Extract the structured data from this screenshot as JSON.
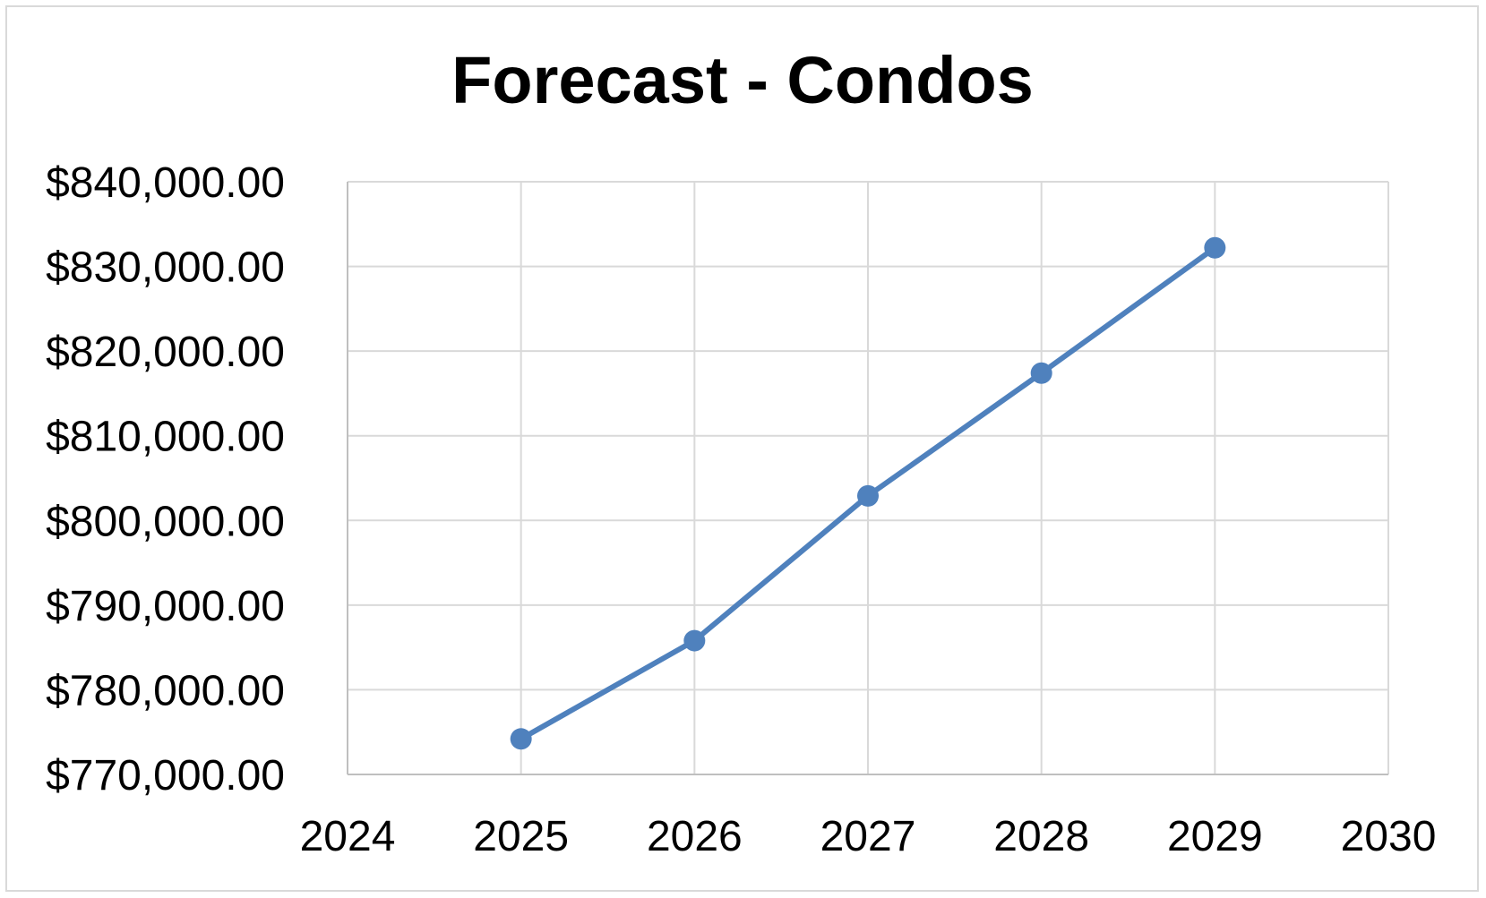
{
  "chart_data": {
    "type": "line",
    "title": "Forecast - Condos",
    "xlabel": "",
    "ylabel": "",
    "x": [
      2025,
      2026,
      2027,
      2028,
      2029
    ],
    "series": [
      {
        "values": [
          774200,
          785800,
          802900,
          817400,
          832200
        ]
      }
    ],
    "xlim": [
      2024,
      2030
    ],
    "ylim": [
      770000,
      840000
    ],
    "x_ticks": [
      "2024",
      "2025",
      "2026",
      "2027",
      "2028",
      "2029",
      "2030"
    ],
    "y_ticks": [
      "$770,000.00",
      "$780,000.00",
      "$790,000.00",
      "$800,000.00",
      "$810,000.00",
      "$820,000.00",
      "$830,000.00",
      "$840,000.00"
    ],
    "grid": true,
    "legend": "none",
    "line_color": "#4f81bd",
    "grid_color": "#d9d9d9"
  }
}
